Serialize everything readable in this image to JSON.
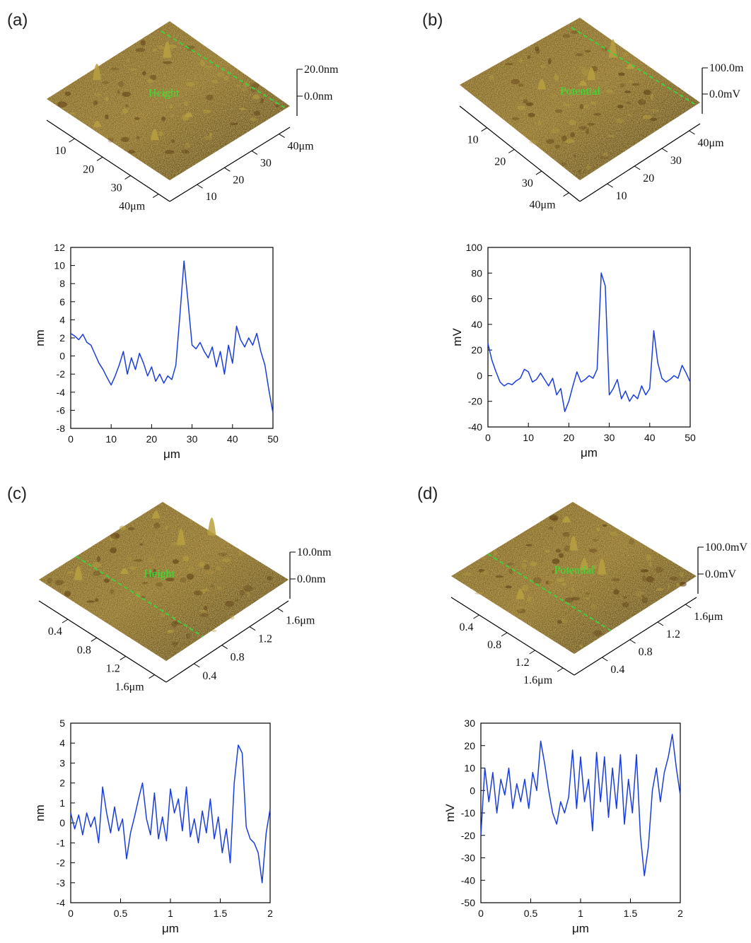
{
  "panels": [
    {
      "label": "(a)",
      "surface": {
        "label": "Height",
        "z_top": "20.0nm",
        "z_zero": "0.0nm",
        "left_ticks": [
          "10",
          "20",
          "30",
          "40μm"
        ],
        "right_ticks": [
          "10",
          "20",
          "30",
          "40μm"
        ],
        "colors": {
          "dark": "#5a3a12",
          "mid": "#8a6420",
          "light": "#b8a040",
          "line": "#3ed13e"
        }
      }
    },
    {
      "label": "(b)",
      "surface": {
        "label": "Potential",
        "z_top": "100.0m",
        "z_zero": "0.0mV",
        "left_ticks": [
          "10",
          "20",
          "30",
          "40μm"
        ],
        "right_ticks": [
          "10",
          "20",
          "30",
          "40μm"
        ],
        "colors": {
          "dark": "#5a3a12",
          "mid": "#8a6420",
          "light": "#b8a040",
          "line": "#3ed13e"
        }
      }
    },
    {
      "label": "(c)",
      "surface": {
        "label": "Height",
        "z_top": "10.0nm",
        "z_zero": "0.0nm",
        "left_ticks": [
          "0.4",
          "0.8",
          "1.2",
          "1.6μm"
        ],
        "right_ticks": [
          "0.4",
          "0.8",
          "1.2",
          "1.6μm"
        ],
        "colors": {
          "dark": "#5a3a12",
          "mid": "#8a6420",
          "light": "#b8a040",
          "line": "#3ed13e"
        }
      }
    },
    {
      "label": "(d)",
      "surface": {
        "label": "Potential",
        "z_top": "100.0mV",
        "z_zero": "0.0mV",
        "left_ticks": [
          "0.4",
          "0.8",
          "1.2",
          "1.6μm"
        ],
        "right_ticks": [
          "0.4",
          "0.8",
          "1.2",
          "1.6μm"
        ],
        "colors": {
          "dark": "#5a3a12",
          "mid": "#8a6420",
          "light": "#b8a040",
          "line": "#3ed13e"
        }
      }
    }
  ],
  "chart_data": [
    {
      "type": "line",
      "panel": "(a)",
      "xlabel": "μm",
      "ylabel": "nm",
      "xlim": [
        0,
        50
      ],
      "ylim": [
        -8,
        12
      ],
      "xticks": [
        0,
        10,
        20,
        30,
        40,
        50
      ],
      "yticks": [
        -8,
        -6,
        -4,
        -2,
        0,
        2,
        4,
        6,
        8,
        10,
        12
      ],
      "color": "#1a3ddb",
      "series": [
        {
          "x": [
            0,
            1,
            2,
            3,
            4,
            5,
            6,
            7,
            8,
            9,
            10,
            11,
            12,
            13,
            14,
            15,
            16,
            17,
            18,
            19,
            20,
            21,
            22,
            23,
            24,
            25,
            26,
            27,
            28,
            29,
            30,
            31,
            32,
            33,
            34,
            35,
            36,
            37,
            38,
            39,
            40,
            41,
            42,
            43,
            44,
            45,
            46,
            47,
            48,
            49,
            50
          ],
          "y": [
            2.5,
            2.2,
            1.8,
            2.4,
            1.5,
            1.2,
            0.2,
            -0.8,
            -1.5,
            -2.4,
            -3.2,
            -2.2,
            -1.0,
            0.5,
            -2.0,
            -0.2,
            -1.5,
            0.3,
            -0.8,
            -2.2,
            -1.2,
            -2.8,
            -2.0,
            -3.0,
            -2.2,
            -2.6,
            -1.0,
            4.5,
            10.5,
            6.0,
            1.2,
            0.8,
            1.5,
            0.5,
            -0.2,
            1.0,
            -1.2,
            0.5,
            -2.0,
            1.2,
            -0.8,
            3.3,
            1.8,
            1.0,
            2.0,
            1.2,
            2.5,
            0.5,
            -1.0,
            -3.8,
            -6.3
          ]
        }
      ]
    },
    {
      "type": "line",
      "panel": "(b)",
      "xlabel": "μm",
      "ylabel": "mV",
      "xlim": [
        0,
        50
      ],
      "ylim": [
        -40,
        100
      ],
      "xticks": [
        0,
        10,
        20,
        30,
        40,
        50
      ],
      "yticks": [
        -40,
        -20,
        0,
        20,
        40,
        60,
        80,
        100
      ],
      "color": "#1a3ddb",
      "series": [
        {
          "x": [
            0,
            1,
            2,
            3,
            4,
            5,
            6,
            7,
            8,
            9,
            10,
            11,
            12,
            13,
            14,
            15,
            16,
            17,
            18,
            19,
            20,
            21,
            22,
            23,
            24,
            25,
            26,
            27,
            28,
            29,
            30,
            31,
            32,
            33,
            34,
            35,
            36,
            37,
            38,
            39,
            40,
            41,
            42,
            43,
            44,
            45,
            46,
            47,
            48,
            49,
            50
          ],
          "y": [
            25,
            12,
            3,
            -5,
            -8,
            -6,
            -7,
            -4,
            -2,
            5,
            3,
            -5,
            -3,
            2,
            -3,
            -8,
            -2,
            -15,
            -10,
            -28,
            -20,
            -8,
            3,
            -5,
            -3,
            0,
            -2,
            5,
            80,
            70,
            -15,
            -10,
            -3,
            -18,
            -12,
            -20,
            -15,
            -18,
            -8,
            -15,
            -10,
            35,
            10,
            -2,
            -5,
            -3,
            0,
            -2,
            8,
            2,
            -5
          ]
        }
      ]
    },
    {
      "type": "line",
      "panel": "(c)",
      "xlabel": "μm",
      "ylabel": "nm",
      "xlim": [
        0,
        2.0
      ],
      "ylim": [
        -4,
        5
      ],
      "xticks": [
        0,
        0.5,
        1.0,
        1.5,
        2.0
      ],
      "yticks": [
        -4,
        -3,
        -2,
        -1,
        0,
        1,
        2,
        3,
        4,
        5
      ],
      "color": "#1a3ddb",
      "series": [
        {
          "x": [
            0,
            0.04,
            0.08,
            0.12,
            0.16,
            0.2,
            0.24,
            0.28,
            0.32,
            0.36,
            0.4,
            0.44,
            0.48,
            0.52,
            0.56,
            0.6,
            0.64,
            0.68,
            0.72,
            0.76,
            0.8,
            0.84,
            0.88,
            0.92,
            0.96,
            1.0,
            1.04,
            1.08,
            1.12,
            1.16,
            1.2,
            1.24,
            1.28,
            1.32,
            1.36,
            1.4,
            1.44,
            1.48,
            1.52,
            1.56,
            1.6,
            1.64,
            1.68,
            1.72,
            1.76,
            1.8,
            1.84,
            1.88,
            1.92,
            1.96,
            2.0
          ],
          "y": [
            0.5,
            -0.3,
            0.4,
            -0.6,
            0.5,
            -0.2,
            0.3,
            -1.0,
            1.8,
            0.5,
            -0.5,
            0.8,
            -0.4,
            0.2,
            -1.8,
            -0.5,
            0.3,
            1.2,
            2.0,
            0.2,
            -0.6,
            1.5,
            -0.8,
            0.3,
            -0.9,
            1.7,
            0.5,
            1.2,
            -0.4,
            1.8,
            -0.7,
            0.2,
            -1.0,
            0.6,
            -0.5,
            1.2,
            -0.8,
            0.3,
            -1.5,
            -0.3,
            -2.0,
            2.0,
            3.9,
            3.5,
            -0.2,
            -0.8,
            -1.0,
            -1.5,
            -3.0,
            -0.5,
            0.7
          ]
        }
      ]
    },
    {
      "type": "line",
      "panel": "(d)",
      "xlabel": "μm",
      "ylabel": "mV",
      "xlim": [
        0,
        2.0
      ],
      "ylim": [
        -50,
        30
      ],
      "xticks": [
        0,
        0.5,
        1.0,
        1.5,
        2.0
      ],
      "yticks": [
        -50,
        -40,
        -30,
        -20,
        -10,
        0,
        10,
        20,
        30
      ],
      "color": "#1a3ddb",
      "series": [
        {
          "x": [
            0,
            0.04,
            0.08,
            0.12,
            0.16,
            0.2,
            0.24,
            0.28,
            0.32,
            0.36,
            0.4,
            0.44,
            0.48,
            0.52,
            0.56,
            0.6,
            0.64,
            0.68,
            0.72,
            0.76,
            0.8,
            0.84,
            0.88,
            0.92,
            0.96,
            1.0,
            1.04,
            1.08,
            1.12,
            1.16,
            1.2,
            1.24,
            1.28,
            1.32,
            1.36,
            1.4,
            1.44,
            1.48,
            1.52,
            1.56,
            1.6,
            1.64,
            1.68,
            1.72,
            1.76,
            1.8,
            1.84,
            1.88,
            1.92,
            1.96,
            2.0
          ],
          "y": [
            -20,
            10,
            -5,
            8,
            -10,
            5,
            -2,
            10,
            -8,
            3,
            -5,
            5,
            -8,
            8,
            0,
            22,
            12,
            0,
            -10,
            -15,
            -5,
            -10,
            -3,
            18,
            -8,
            15,
            -5,
            5,
            -18,
            17,
            -5,
            15,
            -12,
            10,
            -8,
            16,
            -15,
            5,
            -10,
            16,
            -20,
            -38,
            -25,
            0,
            10,
            -5,
            8,
            15,
            25,
            10,
            -2
          ]
        }
      ]
    }
  ]
}
